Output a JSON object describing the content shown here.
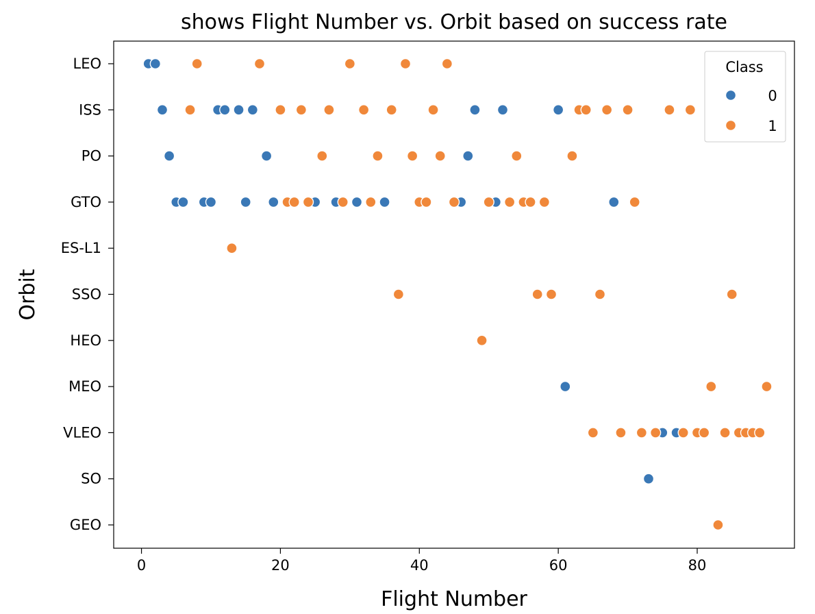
{
  "chart_data": {
    "type": "scatter",
    "title": "shows Flight Number vs. Orbit based on success rate",
    "xlabel": "Flight Number",
    "ylabel": "Orbit",
    "xlim": [
      -4,
      94
    ],
    "xticks": [
      0,
      20,
      40,
      60,
      80
    ],
    "categories": [
      "LEO",
      "ISS",
      "PO",
      "GTO",
      "ES-L1",
      "SSO",
      "HEO",
      "MEO",
      "VLEO",
      "SO",
      "GEO"
    ],
    "grid": false,
    "legend": {
      "title": "Class",
      "placement": "top-right"
    },
    "series": [
      {
        "name": "0",
        "color": "#3a78b6",
        "points": [
          {
            "x": 1,
            "y": "LEO"
          },
          {
            "x": 2,
            "y": "LEO"
          },
          {
            "x": 3,
            "y": "ISS"
          },
          {
            "x": 11,
            "y": "ISS"
          },
          {
            "x": 12,
            "y": "ISS"
          },
          {
            "x": 14,
            "y": "ISS"
          },
          {
            "x": 16,
            "y": "ISS"
          },
          {
            "x": 48,
            "y": "ISS"
          },
          {
            "x": 52,
            "y": "ISS"
          },
          {
            "x": 60,
            "y": "ISS"
          },
          {
            "x": 4,
            "y": "PO"
          },
          {
            "x": 18,
            "y": "PO"
          },
          {
            "x": 47,
            "y": "PO"
          },
          {
            "x": 5,
            "y": "GTO"
          },
          {
            "x": 6,
            "y": "GTO"
          },
          {
            "x": 9,
            "y": "GTO"
          },
          {
            "x": 10,
            "y": "GTO"
          },
          {
            "x": 15,
            "y": "GTO"
          },
          {
            "x": 19,
            "y": "GTO"
          },
          {
            "x": 25,
            "y": "GTO"
          },
          {
            "x": 28,
            "y": "GTO"
          },
          {
            "x": 31,
            "y": "GTO"
          },
          {
            "x": 35,
            "y": "GTO"
          },
          {
            "x": 46,
            "y": "GTO"
          },
          {
            "x": 51,
            "y": "GTO"
          },
          {
            "x": 68,
            "y": "GTO"
          },
          {
            "x": 61,
            "y": "MEO"
          },
          {
            "x": 75,
            "y": "VLEO"
          },
          {
            "x": 77,
            "y": "VLEO"
          },
          {
            "x": 73,
            "y": "SO"
          }
        ]
      },
      {
        "name": "1",
        "color": "#f0883a",
        "points": [
          {
            "x": 8,
            "y": "LEO"
          },
          {
            "x": 17,
            "y": "LEO"
          },
          {
            "x": 30,
            "y": "LEO"
          },
          {
            "x": 38,
            "y": "LEO"
          },
          {
            "x": 44,
            "y": "LEO"
          },
          {
            "x": 7,
            "y": "ISS"
          },
          {
            "x": 20,
            "y": "ISS"
          },
          {
            "x": 23,
            "y": "ISS"
          },
          {
            "x": 27,
            "y": "ISS"
          },
          {
            "x": 32,
            "y": "ISS"
          },
          {
            "x": 36,
            "y": "ISS"
          },
          {
            "x": 42,
            "y": "ISS"
          },
          {
            "x": 63,
            "y": "ISS"
          },
          {
            "x": 64,
            "y": "ISS"
          },
          {
            "x": 67,
            "y": "ISS"
          },
          {
            "x": 70,
            "y": "ISS"
          },
          {
            "x": 76,
            "y": "ISS"
          },
          {
            "x": 79,
            "y": "ISS"
          },
          {
            "x": 26,
            "y": "PO"
          },
          {
            "x": 34,
            "y": "PO"
          },
          {
            "x": 39,
            "y": "PO"
          },
          {
            "x": 43,
            "y": "PO"
          },
          {
            "x": 54,
            "y": "PO"
          },
          {
            "x": 62,
            "y": "PO"
          },
          {
            "x": 21,
            "y": "GTO"
          },
          {
            "x": 22,
            "y": "GTO"
          },
          {
            "x": 24,
            "y": "GTO"
          },
          {
            "x": 29,
            "y": "GTO"
          },
          {
            "x": 33,
            "y": "GTO"
          },
          {
            "x": 40,
            "y": "GTO"
          },
          {
            "x": 41,
            "y": "GTO"
          },
          {
            "x": 45,
            "y": "GTO"
          },
          {
            "x": 50,
            "y": "GTO"
          },
          {
            "x": 53,
            "y": "GTO"
          },
          {
            "x": 55,
            "y": "GTO"
          },
          {
            "x": 56,
            "y": "GTO"
          },
          {
            "x": 58,
            "y": "GTO"
          },
          {
            "x": 71,
            "y": "GTO"
          },
          {
            "x": 13,
            "y": "ES-L1"
          },
          {
            "x": 37,
            "y": "SSO"
          },
          {
            "x": 57,
            "y": "SSO"
          },
          {
            "x": 59,
            "y": "SSO"
          },
          {
            "x": 66,
            "y": "SSO"
          },
          {
            "x": 85,
            "y": "SSO"
          },
          {
            "x": 49,
            "y": "HEO"
          },
          {
            "x": 82,
            "y": "MEO"
          },
          {
            "x": 90,
            "y": "MEO"
          },
          {
            "x": 65,
            "y": "VLEO"
          },
          {
            "x": 69,
            "y": "VLEO"
          },
          {
            "x": 72,
            "y": "VLEO"
          },
          {
            "x": 74,
            "y": "VLEO"
          },
          {
            "x": 78,
            "y": "VLEO"
          },
          {
            "x": 80,
            "y": "VLEO"
          },
          {
            "x": 81,
            "y": "VLEO"
          },
          {
            "x": 84,
            "y": "VLEO"
          },
          {
            "x": 86,
            "y": "VLEO"
          },
          {
            "x": 87,
            "y": "VLEO"
          },
          {
            "x": 88,
            "y": "VLEO"
          },
          {
            "x": 89,
            "y": "VLEO"
          },
          {
            "x": 83,
            "y": "GEO"
          }
        ]
      }
    ]
  }
}
